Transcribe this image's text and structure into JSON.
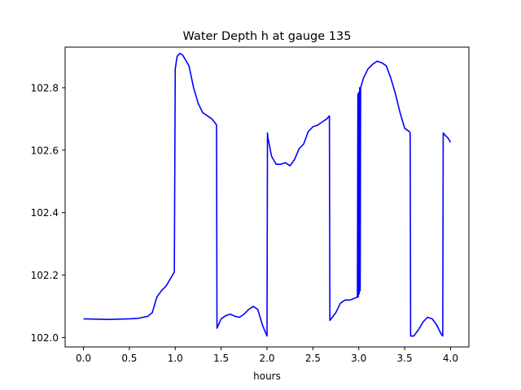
{
  "chart_data": {
    "type": "line",
    "title": "Water Depth h at gauge 135",
    "xlabel": "hours",
    "ylabel": "",
    "xlim": [
      -0.2,
      4.2
    ],
    "ylim": [
      101.97,
      102.93
    ],
    "xticks": [
      0.0,
      0.5,
      1.0,
      1.5,
      2.0,
      2.5,
      3.0,
      3.5,
      4.0
    ],
    "xtick_labels": [
      "0.0",
      "0.5",
      "1.0",
      "1.5",
      "2.0",
      "2.5",
      "3.0",
      "3.5",
      "4.0"
    ],
    "yticks": [
      102.0,
      102.2,
      102.4,
      102.6,
      102.8
    ],
    "ytick_labels": [
      "102.0",
      "102.2",
      "102.4",
      "102.6",
      "102.8"
    ],
    "grid": false,
    "series": [
      {
        "color": "#0000ff",
        "x": [
          0.0,
          0.25,
          0.5,
          0.6,
          0.7,
          0.75,
          0.8,
          0.85,
          0.9,
          0.95,
          0.99,
          1.0,
          1.02,
          1.05,
          1.08,
          1.1,
          1.15,
          1.2,
          1.25,
          1.3,
          1.35,
          1.4,
          1.44,
          1.45,
          1.455,
          1.5,
          1.55,
          1.6,
          1.65,
          1.7,
          1.75,
          1.8,
          1.85,
          1.9,
          1.95,
          2.0,
          2.005,
          2.01,
          2.05,
          2.1,
          2.15,
          2.2,
          2.25,
          2.3,
          2.35,
          2.4,
          2.45,
          2.5,
          2.55,
          2.6,
          2.65,
          2.68,
          2.685,
          2.75,
          2.8,
          2.85,
          2.9,
          2.95,
          2.985,
          2.99,
          2.995,
          3.0,
          3.005,
          3.01,
          3.015,
          3.02,
          3.05,
          3.1,
          3.15,
          3.2,
          3.25,
          3.3,
          3.35,
          3.4,
          3.45,
          3.5,
          3.55,
          3.56,
          3.565,
          3.6,
          3.65,
          3.7,
          3.75,
          3.8,
          3.85,
          3.9,
          3.915,
          3.92,
          3.95,
          3.97,
          4.0
        ],
        "y": [
          102.06,
          102.058,
          102.06,
          102.062,
          102.068,
          102.08,
          102.13,
          102.15,
          102.165,
          102.19,
          102.21,
          102.86,
          102.9,
          102.91,
          102.905,
          102.895,
          102.87,
          102.8,
          102.75,
          102.72,
          102.71,
          102.7,
          102.685,
          102.68,
          102.03,
          102.06,
          102.07,
          102.075,
          102.068,
          102.065,
          102.075,
          102.09,
          102.1,
          102.09,
          102.04,
          102.005,
          102.655,
          102.64,
          102.58,
          102.555,
          102.555,
          102.56,
          102.55,
          102.57,
          102.605,
          102.62,
          102.66,
          102.675,
          102.68,
          102.69,
          102.7,
          102.71,
          102.055,
          102.08,
          102.11,
          102.12,
          102.12,
          102.125,
          102.13,
          102.78,
          102.13,
          102.785,
          102.14,
          102.8,
          102.15,
          102.8,
          102.83,
          102.86,
          102.875,
          102.885,
          102.88,
          102.87,
          102.83,
          102.78,
          102.72,
          102.67,
          102.66,
          102.655,
          102.005,
          102.005,
          102.025,
          102.05,
          102.065,
          102.06,
          102.04,
          102.01,
          102.005,
          102.655,
          102.645,
          102.64,
          102.625
        ]
      }
    ]
  }
}
